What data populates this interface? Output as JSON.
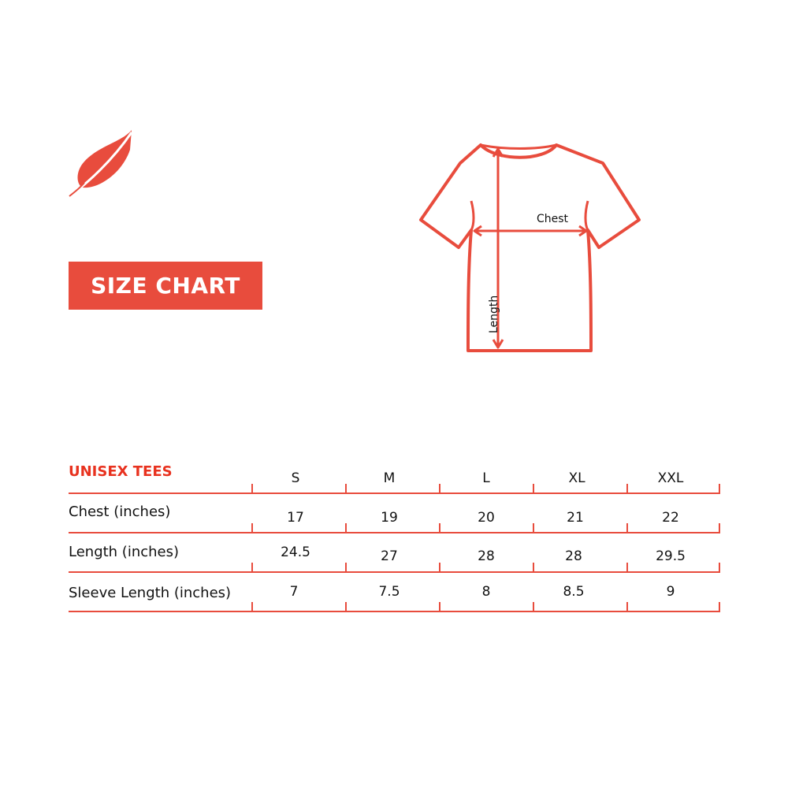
{
  "banner": {
    "title": "SIZE CHART"
  },
  "diagram": {
    "chest_label": "Chest",
    "length_label": "Length"
  },
  "colors": {
    "accent": "#e84c3d",
    "header_text": "#e8321f"
  },
  "icons": {
    "logo": "feather-icon"
  },
  "table": {
    "title": "UNISEX TEES",
    "sizes": [
      "S",
      "M",
      "L",
      "XL",
      "XXL"
    ],
    "rows": [
      {
        "label": "Chest (inches)",
        "values": [
          "17",
          "19",
          "20",
          "21",
          "22"
        ]
      },
      {
        "label": "Length (inches)",
        "values": [
          "24.5",
          "27",
          "28",
          "28",
          "29.5"
        ]
      },
      {
        "label": "Sleeve Length (inches)",
        "values": [
          "7",
          "7.5",
          "8",
          "8.5",
          "9"
        ]
      }
    ]
  }
}
